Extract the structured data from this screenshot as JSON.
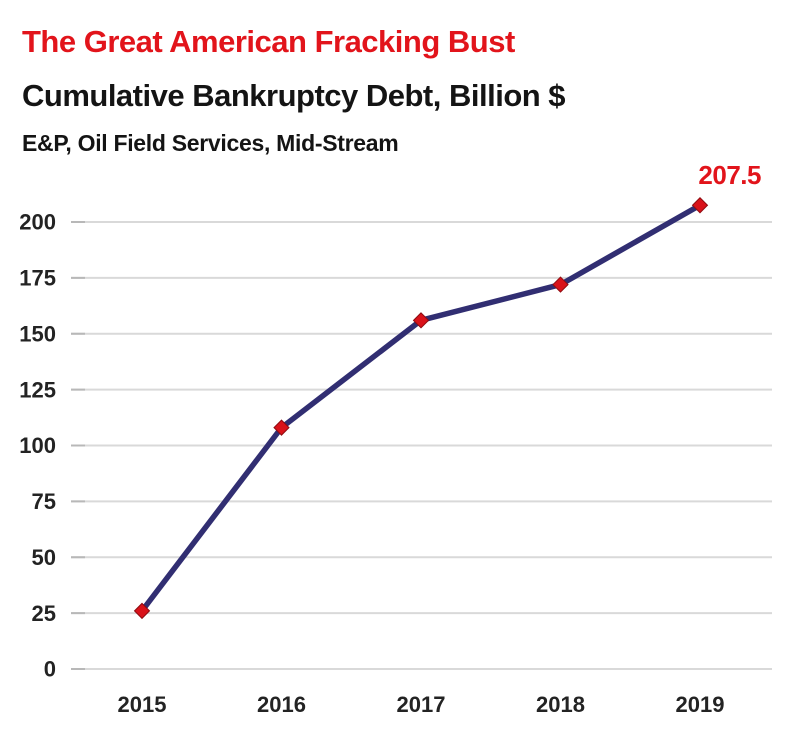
{
  "header": {
    "title": "The Great American Fracking Bust",
    "subtitle": "Cumulative Bankruptcy Debt, Billion $",
    "note": "E&P, Oil Field Services, Mid-Stream"
  },
  "chart_data": {
    "type": "line",
    "title": "The Great American Fracking Bust",
    "subtitle": "Cumulative Bankruptcy Debt, Billion $",
    "note": "E&P, Oil Field Services, Mid-Stream",
    "categories": [
      "2015",
      "2016",
      "2017",
      "2018",
      "2019"
    ],
    "series": [
      {
        "name": "Cumulative bankruptcy debt, billion $",
        "values": [
          26,
          108,
          156,
          172,
          207.5
        ]
      }
    ],
    "annotation": {
      "text": "207.5",
      "attached_to": "2019"
    },
    "yticks": [
      0,
      25,
      50,
      75,
      100,
      125,
      150,
      175,
      200
    ],
    "ylim": [
      0,
      225
    ],
    "xlabel": "",
    "ylabel": "",
    "grid": true,
    "legend": "none",
    "colors": {
      "title_red": "#e2141b",
      "text_black": "#141414",
      "line": "#312e72",
      "marker_fill": "#d9121a",
      "marker_edge": "#8e0b10",
      "grid": "#d9d9d9",
      "tick": "#b8b8b8",
      "axis_text": "#232323"
    }
  }
}
